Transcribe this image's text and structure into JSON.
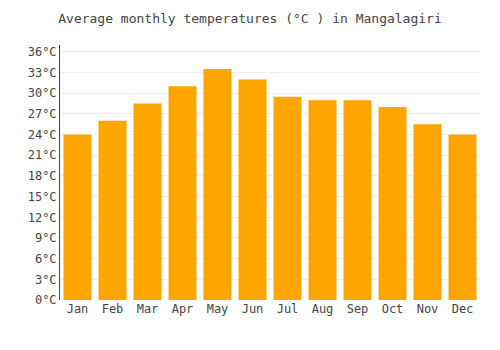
{
  "chart_data": {
    "type": "bar",
    "title": "Average monthly temperatures (°C ) in Mangalagiri",
    "categories": [
      "Jan",
      "Feb",
      "Mar",
      "Apr",
      "May",
      "Jun",
      "Jul",
      "Aug",
      "Sep",
      "Oct",
      "Nov",
      "Dec"
    ],
    "values": [
      24,
      26,
      28.5,
      31,
      33.5,
      32,
      29.5,
      29,
      29,
      28,
      25.5,
      24
    ],
    "color": "#FFA500",
    "ylim": [
      0,
      37
    ],
    "yticks": [
      {
        "value": 0,
        "label": "0°C"
      },
      {
        "value": 3,
        "label": "3°C"
      },
      {
        "value": 6,
        "label": "6°C"
      },
      {
        "value": 9,
        "label": "9°C"
      },
      {
        "value": 12,
        "label": "12°C"
      },
      {
        "value": 15,
        "label": "15°C"
      },
      {
        "value": 18,
        "label": "18°C"
      },
      {
        "value": 21,
        "label": "21°C"
      },
      {
        "value": 24,
        "label": "24°C"
      },
      {
        "value": 27,
        "label": "27°C"
      },
      {
        "value": 30,
        "label": "30°C"
      },
      {
        "value": 33,
        "label": "33°C"
      },
      {
        "value": 36,
        "label": "36°C"
      }
    ],
    "grid": true
  }
}
